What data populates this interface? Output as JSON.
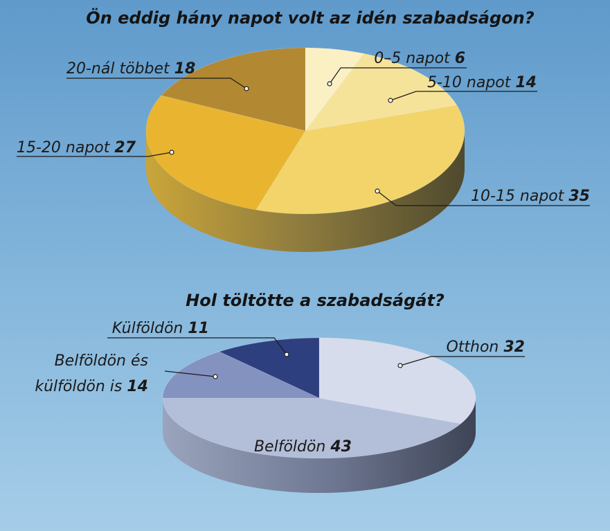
{
  "chart_data": [
    {
      "type": "pie",
      "title": "Ön eddig hány napot volt az idén szabadságon?",
      "slices": [
        {
          "label": "0–5 napot",
          "value": 6,
          "color": "#fbf0c4"
        },
        {
          "label": "5-10 napot",
          "value": 14,
          "color": "#f6e39a"
        },
        {
          "label": "10-15 napot",
          "value": 35,
          "color": "#f2d46a"
        },
        {
          "label": "15-20 napot",
          "value": 27,
          "color": "#e9b530"
        },
        {
          "label": "20-nál többet",
          "value": 18,
          "color": "#b28832"
        }
      ]
    },
    {
      "type": "pie",
      "title": "Hol töltötte a szabadságát?",
      "slices": [
        {
          "label": "Otthon",
          "value": 32,
          "color": "#d6dceb"
        },
        {
          "label": "Belföldön",
          "value": 43,
          "color": "#b3bed8"
        },
        {
          "label": "Belföldön és külföldön is",
          "label_lines": [
            "Belföldön és",
            "külföldön is"
          ],
          "value": 14,
          "color": "#8492c0"
        },
        {
          "label": "Külföldön",
          "value": 11,
          "color": "#2e3f80"
        }
      ]
    }
  ]
}
